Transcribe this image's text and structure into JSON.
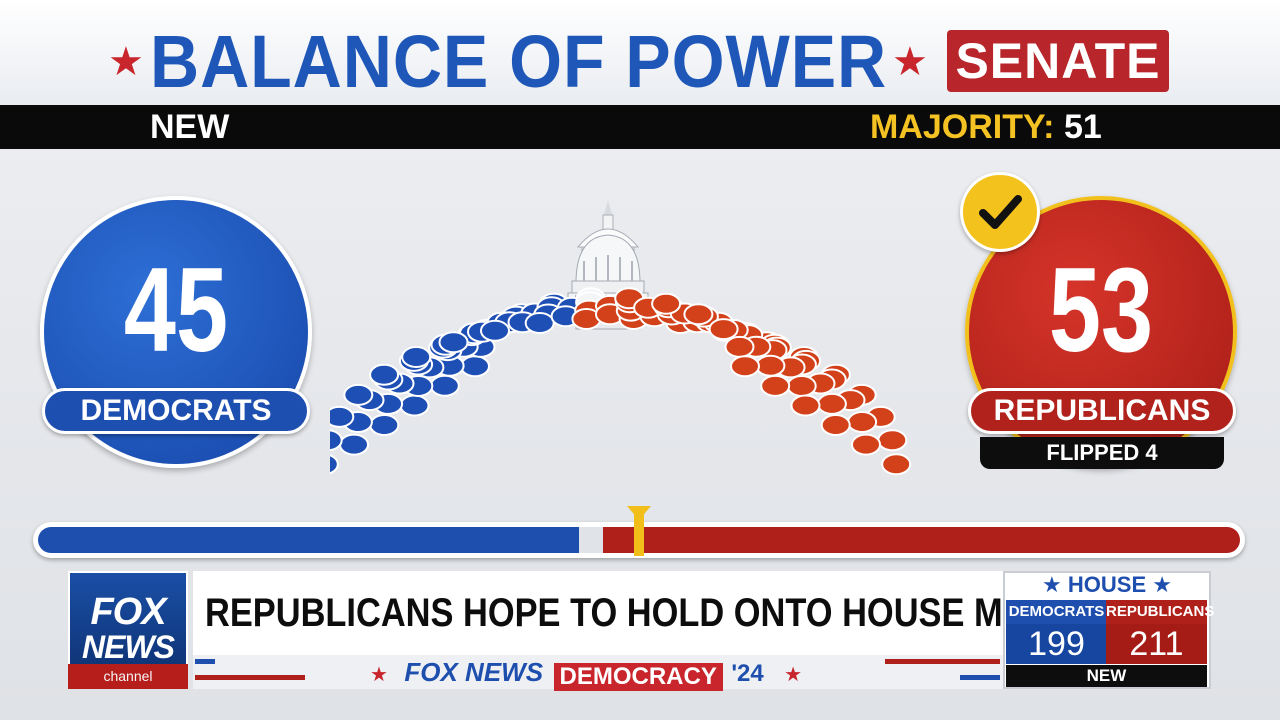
{
  "header": {
    "title": "BALANCE OF POWER",
    "chamber": "SENATE",
    "status": "NEW",
    "majority_label": "MAJORITY:",
    "majority_value": "51"
  },
  "democrats": {
    "seats": "45",
    "label": "DEMOCRATS",
    "color": "#1e4fae"
  },
  "republicans": {
    "seats": "53",
    "label": "REPUBLICANS",
    "flipped": "FLIPPED 4",
    "color": "#b0201a",
    "winner": true
  },
  "seat_chart": {
    "total": 100,
    "democrats": 45,
    "undecided": 2,
    "republicans": 53,
    "colors": {
      "dem": "#1e4fb4",
      "undecided": "#f4f5f7",
      "gop": "#d2411a"
    }
  },
  "power_bar": {
    "dem_fraction": 0.45,
    "undecided_fraction": 0.02,
    "gop_fraction": 0.53
  },
  "lower_third": {
    "logo_top": "FOX",
    "logo_bottom": "NEWS",
    "channel": "channel",
    "headline": "REPUBLICANS HOPE TO HOLD ONTO HOUSE MAJORITY",
    "brand_fox": "FOX NEWS",
    "brand_democracy": "DEMOCRACY",
    "brand_year": "'24"
  },
  "house": {
    "title": "★ HOUSE ★",
    "dem_label": "DEMOCRATS",
    "dem_seats": "199",
    "gop_label": "REPUBLICANS",
    "gop_seats": "211",
    "status": "NEW"
  }
}
